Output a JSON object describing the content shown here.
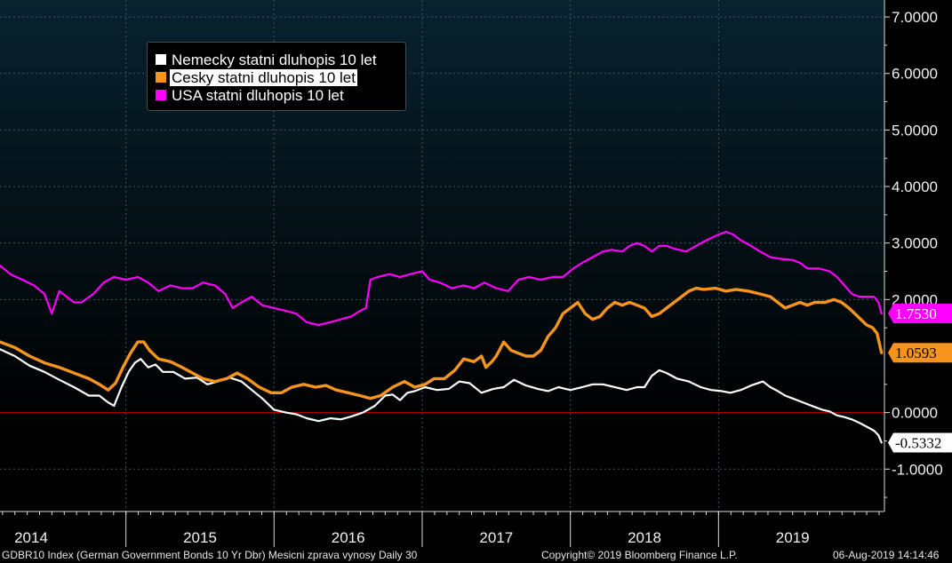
{
  "chart_data": {
    "type": "line",
    "y_ticks": [
      "7.0000",
      "6.0000",
      "5.0000",
      "4.0000",
      "3.0000",
      "2.0000",
      "0.0000",
      "-1.0000"
    ],
    "y_tick_values": [
      7,
      6,
      5,
      4,
      3,
      2,
      0,
      -1
    ],
    "ylim": [
      -1.75,
      7.3
    ],
    "x_year_labels": [
      "2014",
      "2015",
      "2016",
      "2017",
      "2018",
      "2019"
    ],
    "x_year_label_dates": [
      2013.86,
      2015.0,
      2016.0,
      2017.0,
      2018.0,
      2019.0
    ],
    "x_year_boundaries": [
      2014.5,
      2015.5,
      2016.5,
      2017.5,
      2018.5
    ],
    "xlim": [
      2013.65,
      2019.62
    ],
    "zero_line": 0,
    "legend_placement": "top-left",
    "series": [
      {
        "name": "Nemecky statni dluhopis 10 let",
        "color": "#ffffff",
        "last_value": "-0.5332",
        "line_width": 2.2,
        "points": [
          [
            2013.65,
            1.12
          ],
          [
            2013.75,
            1.0
          ],
          [
            2013.85,
            0.83
          ],
          [
            2013.95,
            0.72
          ],
          [
            2014.05,
            0.58
          ],
          [
            2014.15,
            0.45
          ],
          [
            2014.25,
            0.3
          ],
          [
            2014.32,
            0.3
          ],
          [
            2014.38,
            0.18
          ],
          [
            2014.42,
            0.12
          ],
          [
            2014.47,
            0.45
          ],
          [
            2014.52,
            0.73
          ],
          [
            2014.56,
            0.88
          ],
          [
            2014.6,
            0.95
          ],
          [
            2014.65,
            0.8
          ],
          [
            2014.7,
            0.85
          ],
          [
            2014.75,
            0.72
          ],
          [
            2014.82,
            0.72
          ],
          [
            2014.9,
            0.6
          ],
          [
            2014.98,
            0.62
          ],
          [
            2015.05,
            0.5
          ],
          [
            2015.12,
            0.55
          ],
          [
            2015.2,
            0.62
          ],
          [
            2015.28,
            0.55
          ],
          [
            2015.35,
            0.4
          ],
          [
            2015.42,
            0.25
          ],
          [
            2015.5,
            0.05
          ],
          [
            2015.58,
            0.0
          ],
          [
            2015.65,
            -0.03
          ],
          [
            2015.72,
            -0.1
          ],
          [
            2015.8,
            -0.15
          ],
          [
            2015.88,
            -0.1
          ],
          [
            2015.95,
            -0.12
          ],
          [
            2016.02,
            -0.07
          ],
          [
            2016.1,
            0.0
          ],
          [
            2016.18,
            0.12
          ],
          [
            2016.25,
            0.3
          ],
          [
            2016.3,
            0.32
          ],
          [
            2016.35,
            0.22
          ],
          [
            2016.4,
            0.35
          ],
          [
            2016.45,
            0.38
          ],
          [
            2016.52,
            0.45
          ],
          [
            2016.6,
            0.4
          ],
          [
            2016.68,
            0.42
          ],
          [
            2016.75,
            0.55
          ],
          [
            2016.82,
            0.52
          ],
          [
            2016.9,
            0.35
          ],
          [
            2016.98,
            0.42
          ],
          [
            2017.05,
            0.45
          ],
          [
            2017.12,
            0.58
          ],
          [
            2017.2,
            0.48
          ],
          [
            2017.28,
            0.42
          ],
          [
            2017.35,
            0.38
          ],
          [
            2017.42,
            0.45
          ],
          [
            2017.5,
            0.4
          ],
          [
            2017.58,
            0.45
          ],
          [
            2017.65,
            0.5
          ],
          [
            2017.72,
            0.5
          ],
          [
            2017.8,
            0.45
          ],
          [
            2017.88,
            0.4
          ],
          [
            2017.95,
            0.45
          ],
          [
            2018.0,
            0.45
          ],
          [
            2018.05,
            0.65
          ],
          [
            2018.1,
            0.75
          ],
          [
            2018.15,
            0.7
          ],
          [
            2018.22,
            0.6
          ],
          [
            2018.3,
            0.55
          ],
          [
            2018.38,
            0.45
          ],
          [
            2018.45,
            0.4
          ],
          [
            2018.52,
            0.38
          ],
          [
            2018.58,
            0.35
          ],
          [
            2018.65,
            0.4
          ],
          [
            2018.72,
            0.48
          ],
          [
            2018.8,
            0.55
          ],
          [
            2018.85,
            0.45
          ],
          [
            2018.9,
            0.38
          ],
          [
            2018.95,
            0.3
          ],
          [
            2019.0,
            0.25
          ],
          [
            2019.05,
            0.2
          ],
          [
            2019.1,
            0.15
          ],
          [
            2019.15,
            0.1
          ],
          [
            2019.2,
            0.05
          ],
          [
            2019.25,
            0.02
          ],
          [
            2019.3,
            -0.05
          ],
          [
            2019.35,
            -0.08
          ],
          [
            2019.4,
            -0.12
          ],
          [
            2019.45,
            -0.18
          ],
          [
            2019.5,
            -0.25
          ],
          [
            2019.55,
            -0.32
          ],
          [
            2019.58,
            -0.4
          ],
          [
            2019.6,
            -0.53
          ]
        ]
      },
      {
        "name": "Cesky statni dluhopis 10 let",
        "color": "#f7941d",
        "last_value": "1.0593",
        "line_width": 3.4,
        "points": [
          [
            2013.65,
            1.25
          ],
          [
            2013.75,
            1.15
          ],
          [
            2013.85,
            1.0
          ],
          [
            2013.95,
            0.88
          ],
          [
            2014.05,
            0.8
          ],
          [
            2014.15,
            0.7
          ],
          [
            2014.25,
            0.6
          ],
          [
            2014.32,
            0.5
          ],
          [
            2014.38,
            0.4
          ],
          [
            2014.43,
            0.52
          ],
          [
            2014.48,
            0.8
          ],
          [
            2014.53,
            1.05
          ],
          [
            2014.58,
            1.25
          ],
          [
            2014.62,
            1.25
          ],
          [
            2014.66,
            1.1
          ],
          [
            2014.72,
            0.95
          ],
          [
            2014.8,
            0.9
          ],
          [
            2014.88,
            0.8
          ],
          [
            2014.95,
            0.7
          ],
          [
            2015.02,
            0.6
          ],
          [
            2015.1,
            0.55
          ],
          [
            2015.18,
            0.6
          ],
          [
            2015.25,
            0.7
          ],
          [
            2015.32,
            0.6
          ],
          [
            2015.4,
            0.45
          ],
          [
            2015.48,
            0.35
          ],
          [
            2015.55,
            0.35
          ],
          [
            2015.62,
            0.45
          ],
          [
            2015.7,
            0.5
          ],
          [
            2015.78,
            0.45
          ],
          [
            2015.85,
            0.48
          ],
          [
            2015.92,
            0.4
          ],
          [
            2016.0,
            0.35
          ],
          [
            2016.08,
            0.3
          ],
          [
            2016.15,
            0.25
          ],
          [
            2016.22,
            0.3
          ],
          [
            2016.3,
            0.45
          ],
          [
            2016.38,
            0.55
          ],
          [
            2016.45,
            0.45
          ],
          [
            2016.52,
            0.5
          ],
          [
            2016.58,
            0.6
          ],
          [
            2016.65,
            0.6
          ],
          [
            2016.72,
            0.75
          ],
          [
            2016.78,
            0.95
          ],
          [
            2016.85,
            0.9
          ],
          [
            2016.9,
            1.0
          ],
          [
            2016.93,
            0.8
          ],
          [
            2016.97,
            0.9
          ],
          [
            2017.0,
            1.0
          ],
          [
            2017.05,
            1.25
          ],
          [
            2017.1,
            1.1
          ],
          [
            2017.15,
            1.05
          ],
          [
            2017.2,
            1.0
          ],
          [
            2017.25,
            1.0
          ],
          [
            2017.3,
            1.1
          ],
          [
            2017.35,
            1.35
          ],
          [
            2017.4,
            1.5
          ],
          [
            2017.45,
            1.75
          ],
          [
            2017.5,
            1.85
          ],
          [
            2017.55,
            1.95
          ],
          [
            2017.6,
            1.75
          ],
          [
            2017.65,
            1.65
          ],
          [
            2017.7,
            1.7
          ],
          [
            2017.75,
            1.85
          ],
          [
            2017.8,
            1.95
          ],
          [
            2017.85,
            1.9
          ],
          [
            2017.9,
            1.95
          ],
          [
            2017.95,
            1.9
          ],
          [
            2018.0,
            1.85
          ],
          [
            2018.05,
            1.7
          ],
          [
            2018.1,
            1.75
          ],
          [
            2018.15,
            1.85
          ],
          [
            2018.2,
            1.95
          ],
          [
            2018.25,
            2.05
          ],
          [
            2018.3,
            2.15
          ],
          [
            2018.35,
            2.2
          ],
          [
            2018.4,
            2.18
          ],
          [
            2018.48,
            2.2
          ],
          [
            2018.55,
            2.15
          ],
          [
            2018.62,
            2.18
          ],
          [
            2018.7,
            2.15
          ],
          [
            2018.78,
            2.1
          ],
          [
            2018.85,
            2.05
          ],
          [
            2018.9,
            1.95
          ],
          [
            2018.95,
            1.85
          ],
          [
            2019.0,
            1.9
          ],
          [
            2019.05,
            1.95
          ],
          [
            2019.1,
            1.9
          ],
          [
            2019.15,
            1.95
          ],
          [
            2019.22,
            1.95
          ],
          [
            2019.28,
            2.0
          ],
          [
            2019.33,
            1.95
          ],
          [
            2019.38,
            1.85
          ],
          [
            2019.42,
            1.75
          ],
          [
            2019.46,
            1.65
          ],
          [
            2019.5,
            1.55
          ],
          [
            2019.54,
            1.5
          ],
          [
            2019.57,
            1.4
          ],
          [
            2019.6,
            1.06
          ]
        ]
      },
      {
        "name": "USA statni dluhopis 10 let",
        "color": "#ff00ff",
        "last_value": "1.7530",
        "line_width": 2.2,
        "points": [
          [
            2013.65,
            2.6
          ],
          [
            2013.72,
            2.45
          ],
          [
            2013.8,
            2.35
          ],
          [
            2013.88,
            2.25
          ],
          [
            2013.95,
            2.1
          ],
          [
            2014.0,
            1.75
          ],
          [
            2014.05,
            2.15
          ],
          [
            2014.1,
            2.05
          ],
          [
            2014.15,
            1.95
          ],
          [
            2014.2,
            1.95
          ],
          [
            2014.28,
            2.1
          ],
          [
            2014.35,
            2.3
          ],
          [
            2014.42,
            2.4
          ],
          [
            2014.5,
            2.35
          ],
          [
            2014.58,
            2.4
          ],
          [
            2014.65,
            2.3
          ],
          [
            2014.72,
            2.15
          ],
          [
            2014.8,
            2.25
          ],
          [
            2014.88,
            2.2
          ],
          [
            2014.95,
            2.2
          ],
          [
            2015.02,
            2.3
          ],
          [
            2015.1,
            2.25
          ],
          [
            2015.17,
            2.1
          ],
          [
            2015.22,
            1.85
          ],
          [
            2015.28,
            1.95
          ],
          [
            2015.35,
            2.05
          ],
          [
            2015.42,
            1.9
          ],
          [
            2015.5,
            1.85
          ],
          [
            2015.58,
            1.8
          ],
          [
            2015.65,
            1.75
          ],
          [
            2015.72,
            1.6
          ],
          [
            2015.8,
            1.55
          ],
          [
            2015.88,
            1.6
          ],
          [
            2015.95,
            1.65
          ],
          [
            2016.02,
            1.7
          ],
          [
            2016.08,
            1.8
          ],
          [
            2016.12,
            1.85
          ],
          [
            2016.15,
            2.35
          ],
          [
            2016.2,
            2.4
          ],
          [
            2016.28,
            2.45
          ],
          [
            2016.35,
            2.4
          ],
          [
            2016.42,
            2.45
          ],
          [
            2016.5,
            2.5
          ],
          [
            2016.55,
            2.35
          ],
          [
            2016.62,
            2.3
          ],
          [
            2016.7,
            2.2
          ],
          [
            2016.78,
            2.25
          ],
          [
            2016.85,
            2.2
          ],
          [
            2016.92,
            2.3
          ],
          [
            2017.0,
            2.2
          ],
          [
            2017.08,
            2.15
          ],
          [
            2017.15,
            2.35
          ],
          [
            2017.22,
            2.4
          ],
          [
            2017.3,
            2.35
          ],
          [
            2017.38,
            2.4
          ],
          [
            2017.45,
            2.4
          ],
          [
            2017.52,
            2.55
          ],
          [
            2017.58,
            2.65
          ],
          [
            2017.65,
            2.75
          ],
          [
            2017.72,
            2.85
          ],
          [
            2017.78,
            2.88
          ],
          [
            2017.85,
            2.85
          ],
          [
            2017.9,
            2.95
          ],
          [
            2017.95,
            3.0
          ],
          [
            2018.0,
            2.95
          ],
          [
            2018.05,
            2.85
          ],
          [
            2018.1,
            2.95
          ],
          [
            2018.15,
            2.95
          ],
          [
            2018.2,
            2.9
          ],
          [
            2018.28,
            2.85
          ],
          [
            2018.35,
            2.95
          ],
          [
            2018.42,
            3.05
          ],
          [
            2018.5,
            3.15
          ],
          [
            2018.55,
            3.2
          ],
          [
            2018.6,
            3.15
          ],
          [
            2018.65,
            3.05
          ],
          [
            2018.72,
            2.95
          ],
          [
            2018.78,
            2.85
          ],
          [
            2018.85,
            2.75
          ],
          [
            2018.92,
            2.72
          ],
          [
            2019.0,
            2.7
          ],
          [
            2019.05,
            2.65
          ],
          [
            2019.1,
            2.55
          ],
          [
            2019.18,
            2.55
          ],
          [
            2019.25,
            2.5
          ],
          [
            2019.3,
            2.4
          ],
          [
            2019.35,
            2.25
          ],
          [
            2019.4,
            2.1
          ],
          [
            2019.45,
            2.05
          ],
          [
            2019.5,
            2.05
          ],
          [
            2019.55,
            2.05
          ],
          [
            2019.58,
            1.95
          ],
          [
            2019.6,
            1.75
          ]
        ]
      }
    ]
  },
  "footer": {
    "left": "GDBR10 Index (German Government Bonds 10 Yr Dbr) Mesicni zprava vynosy  Daily 30",
    "center": "Copyright© 2019 Bloomberg Finance L.P.",
    "right": "06-Aug-2019 14:14:46"
  },
  "colors": {
    "background_top": "#08222f",
    "background_bottom": "#000000",
    "grid": "#3c5560",
    "zero_line": "#c40000",
    "axis": "#dcdcdc"
  }
}
